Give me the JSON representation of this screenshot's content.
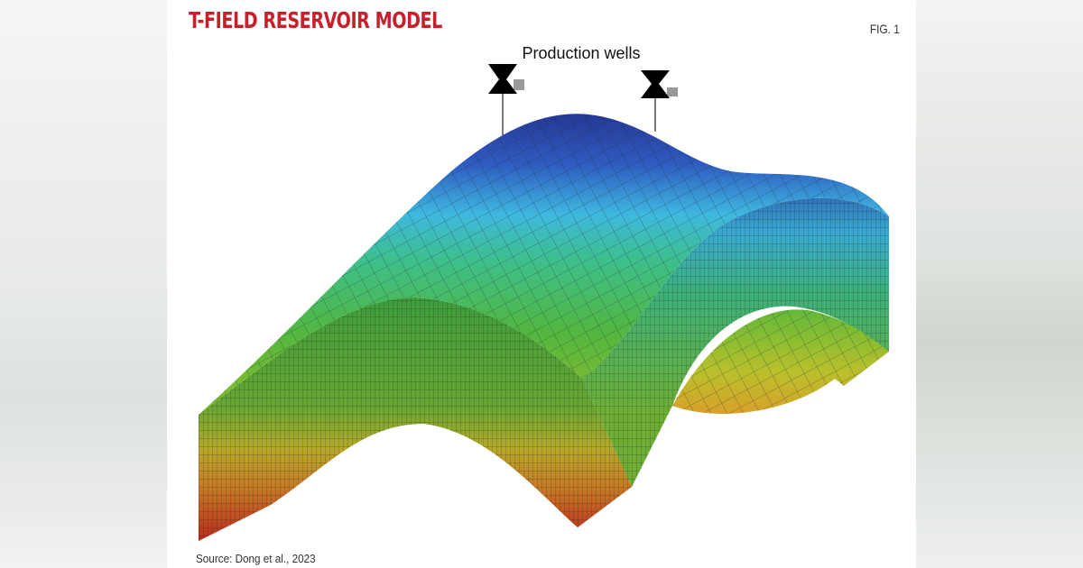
{
  "header": {
    "title": "T-FIELD RESERVOIR MODEL",
    "figure_label": "FIG. 1"
  },
  "figure": {
    "annotation": "Production wells"
  },
  "source": "Source: Dong et al., 2023"
}
